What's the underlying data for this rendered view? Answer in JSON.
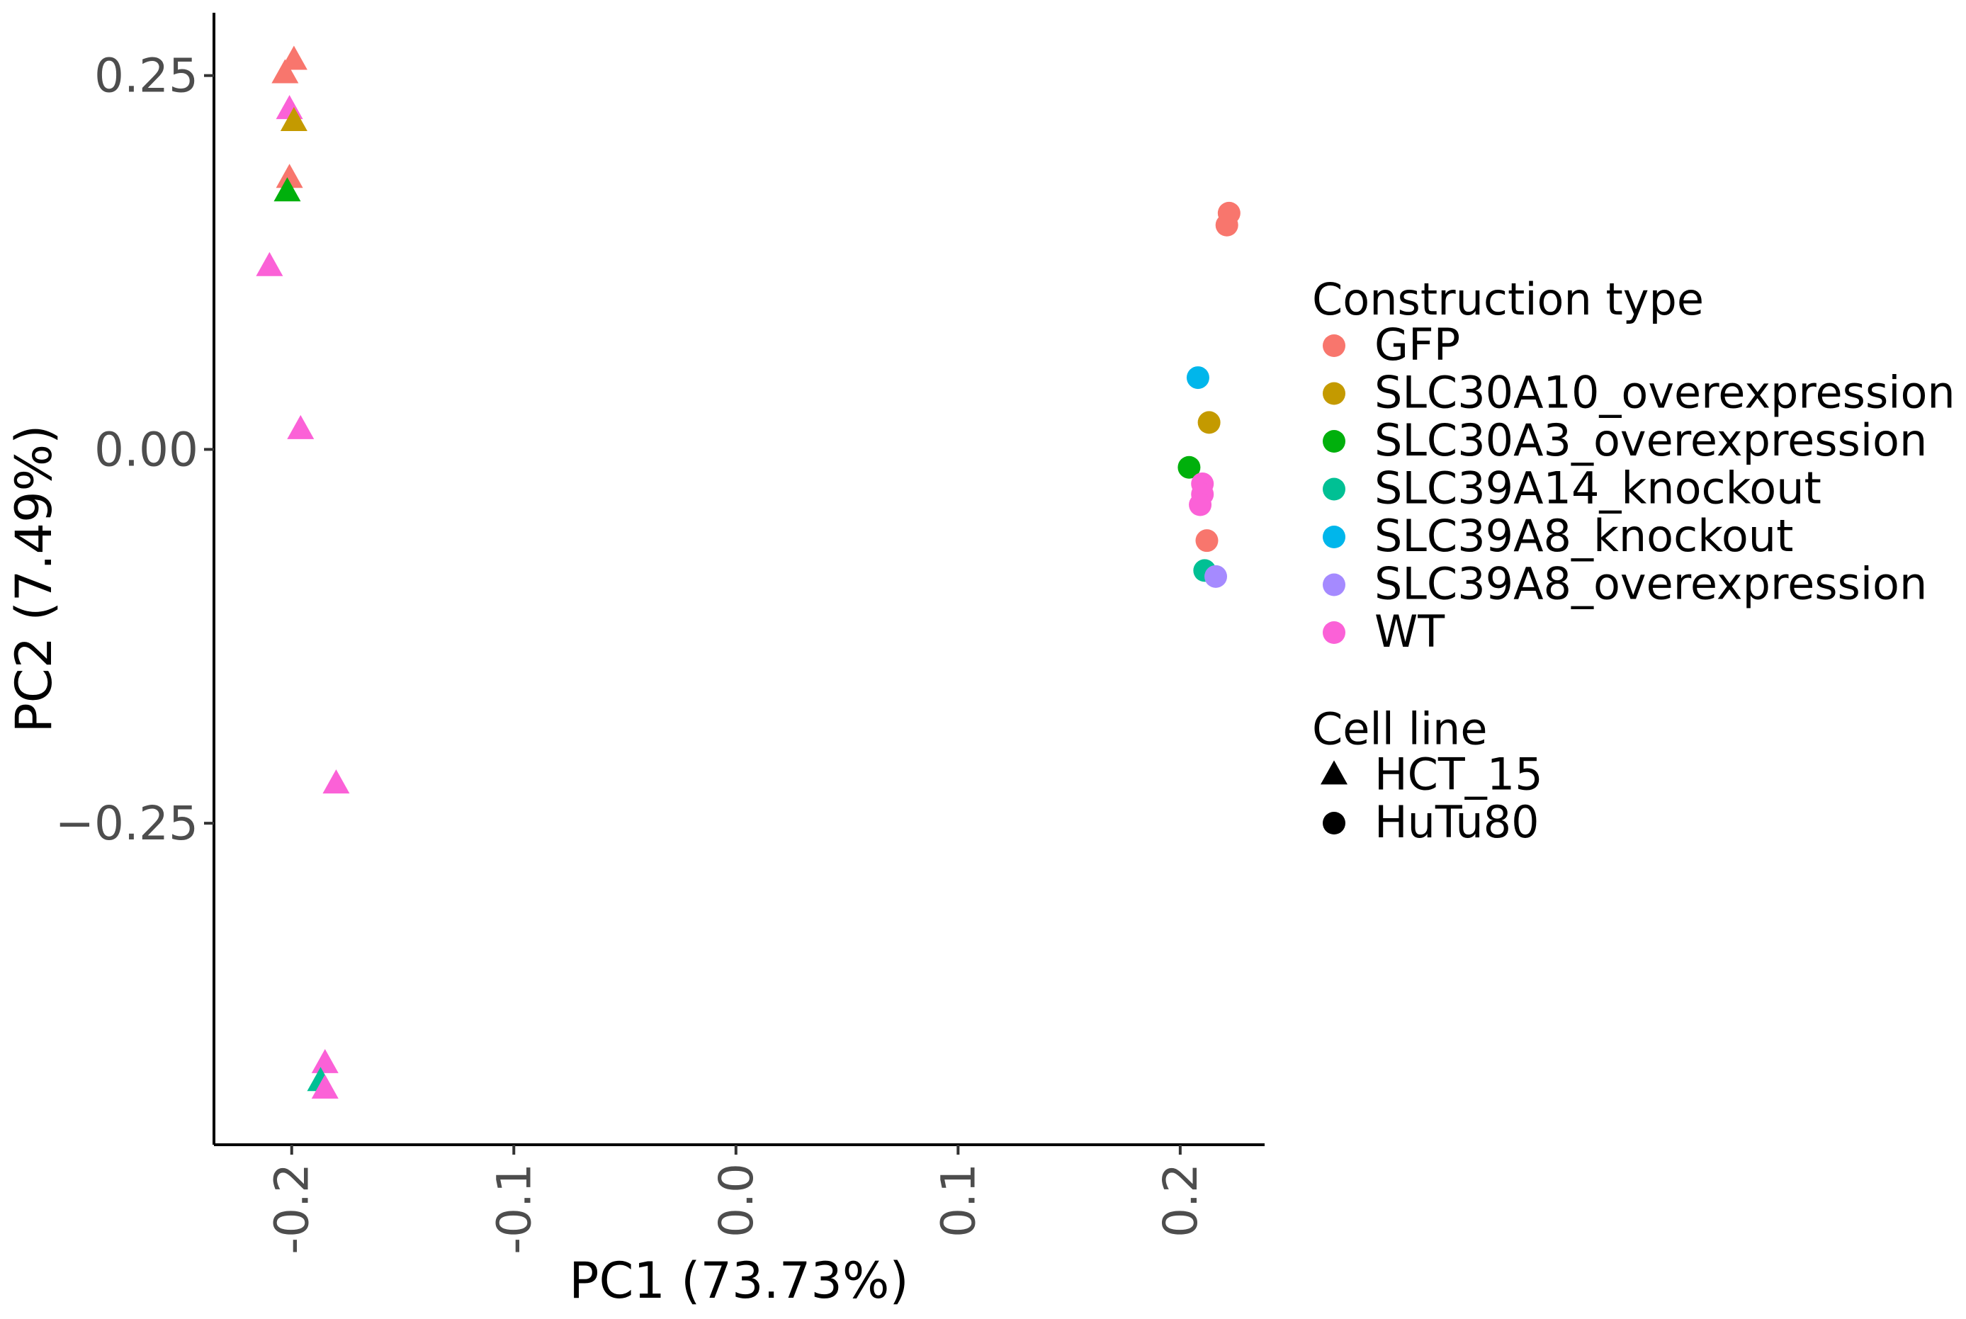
{
  "chart_data": {
    "type": "scatter",
    "xlabel": "PC1 (73.73%)",
    "ylabel": "PC2 (7.49%)",
    "xlim": [
      -0.235,
      0.238
    ],
    "ylim": [
      -0.465,
      0.292
    ],
    "x_ticks": [
      -0.2,
      -0.1,
      0.0,
      0.1,
      0.2
    ],
    "x_tick_labels": [
      "-0.2",
      "-0.1",
      "0.0",
      "0.1",
      "0.2"
    ],
    "y_ticks": [
      0.25,
      0.0,
      -0.25
    ],
    "y_tick_labels": [
      "0.25",
      "0.00",
      "−0.25"
    ],
    "grid": false,
    "legends": [
      {
        "title": "Construction type",
        "entries": [
          {
            "label": "GFP",
            "color": "#F8766D"
          },
          {
            "label": "SLC30A10_overexpression",
            "color": "#C49A00"
          },
          {
            "label": "SLC30A3_overexpression",
            "color": "#00B00C"
          },
          {
            "label": "SLC39A14_knockout",
            "color": "#00C094"
          },
          {
            "label": "SLC39A8_knockout",
            "color": "#00B6EB"
          },
          {
            "label": "SLC39A8_overexpression",
            "color": "#A58AFF"
          },
          {
            "label": "WT",
            "color": "#FB61D7"
          }
        ]
      },
      {
        "title": "Cell line",
        "entries": [
          {
            "label": "HCT_15",
            "shape": "triangle"
          },
          {
            "label": "HuTu80",
            "shape": "circle"
          }
        ]
      }
    ],
    "points": [
      {
        "x": -0.199,
        "y": 0.26,
        "group": "GFP",
        "cell_line": "HCT_15"
      },
      {
        "x": -0.203,
        "y": 0.251,
        "group": "GFP",
        "cell_line": "HCT_15"
      },
      {
        "x": -0.201,
        "y": 0.227,
        "group": "WT",
        "cell_line": "HCT_15"
      },
      {
        "x": -0.199,
        "y": 0.219,
        "group": "SLC30A10_overexpression",
        "cell_line": "HCT_15"
      },
      {
        "x": -0.201,
        "y": 0.181,
        "group": "GFP",
        "cell_line": "HCT_15"
      },
      {
        "x": -0.202,
        "y": 0.172,
        "group": "SLC30A3_overexpression",
        "cell_line": "HCT_15"
      },
      {
        "x": -0.21,
        "y": 0.122,
        "group": "WT",
        "cell_line": "HCT_15"
      },
      {
        "x": -0.196,
        "y": 0.013,
        "group": "WT",
        "cell_line": "HCT_15"
      },
      {
        "x": -0.18,
        "y": -0.224,
        "group": "WT",
        "cell_line": "HCT_15"
      },
      {
        "x": -0.185,
        "y": -0.411,
        "group": "WT",
        "cell_line": "HCT_15"
      },
      {
        "x": -0.187,
        "y": -0.423,
        "group": "SLC39A14_knockout",
        "cell_line": "HCT_15"
      },
      {
        "x": -0.185,
        "y": -0.428,
        "group": "WT",
        "cell_line": "HCT_15"
      },
      {
        "x": 0.222,
        "y": 0.158,
        "group": "GFP",
        "cell_line": "HuTu80"
      },
      {
        "x": 0.221,
        "y": 0.15,
        "group": "GFP",
        "cell_line": "HuTu80"
      },
      {
        "x": 0.208,
        "y": 0.048,
        "group": "SLC39A8_knockout",
        "cell_line": "HuTu80"
      },
      {
        "x": 0.213,
        "y": 0.018,
        "group": "SLC30A10_overexpression",
        "cell_line": "HuTu80"
      },
      {
        "x": 0.204,
        "y": -0.012,
        "group": "SLC30A3_overexpression",
        "cell_line": "HuTu80"
      },
      {
        "x": 0.21,
        "y": -0.023,
        "group": "WT",
        "cell_line": "HuTu80"
      },
      {
        "x": 0.21,
        "y": -0.03,
        "group": "WT",
        "cell_line": "HuTu80"
      },
      {
        "x": 0.209,
        "y": -0.037,
        "group": "WT",
        "cell_line": "HuTu80"
      },
      {
        "x": 0.212,
        "y": -0.061,
        "group": "GFP",
        "cell_line": "HuTu80"
      },
      {
        "x": 0.211,
        "y": -0.081,
        "group": "SLC39A14_knockout",
        "cell_line": "HuTu80"
      },
      {
        "x": 0.216,
        "y": -0.085,
        "group": "SLC39A8_overexpression",
        "cell_line": "HuTu80"
      }
    ]
  }
}
